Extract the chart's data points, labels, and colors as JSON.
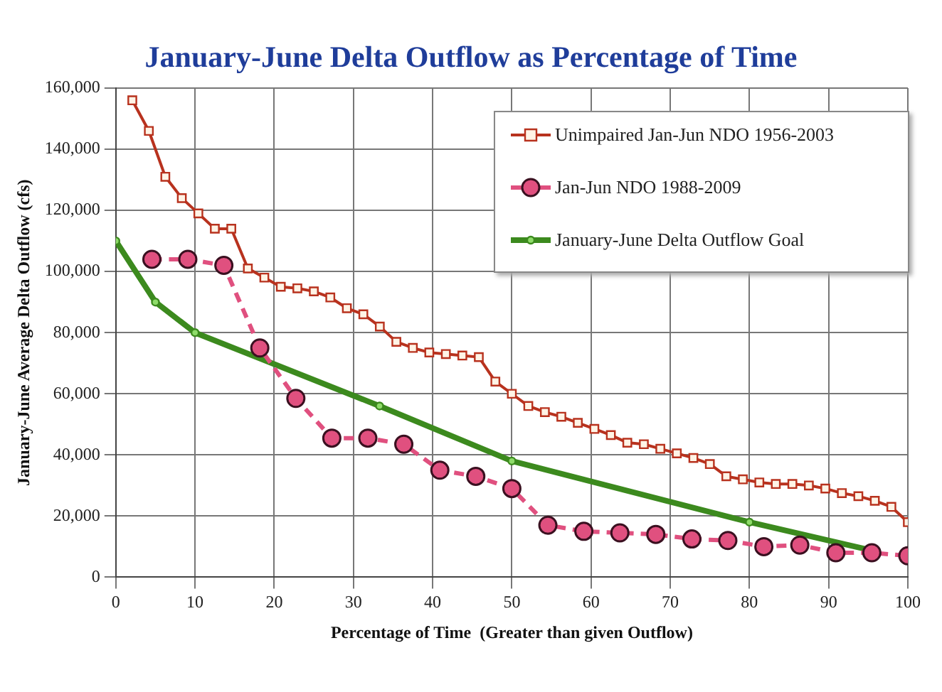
{
  "chart_data": {
    "type": "line",
    "title": "January-June Delta Outflow as Percentage of Time",
    "xlabel": "Percentage of Time  (Greater than given Outflow)",
    "ylabel": "January-June Average Delta Outflow (cfs)",
    "xlim": [
      0,
      100
    ],
    "xticks": [
      0,
      10,
      20,
      30,
      40,
      50,
      60,
      70,
      80,
      90,
      100
    ],
    "ylim": [
      0,
      160000
    ],
    "yticks": [
      {
        "value": 0,
        "label": "0"
      },
      {
        "value": 20000,
        "label": "20,000"
      },
      {
        "value": 40000,
        "label": "40,000"
      },
      {
        "value": 60000,
        "label": "60,000"
      },
      {
        "value": 80000,
        "label": "80,000"
      },
      {
        "value": 100000,
        "label": "100,000"
      },
      {
        "value": 120000,
        "label": "120,000"
      },
      {
        "value": 140000,
        "label": "140,000"
      },
      {
        "value": 160000,
        "label": "160,000"
      }
    ],
    "grid": true,
    "legend": "top right",
    "series": [
      {
        "name": "Unimpaired Jan-Jun NDO 1956-2003",
        "color": "#b8321e",
        "marker": "square",
        "line_style": "solid",
        "x": [
          2.08,
          4.17,
          6.25,
          8.33,
          10.42,
          12.5,
          14.58,
          16.67,
          18.75,
          20.83,
          22.92,
          25,
          27.08,
          29.17,
          31.25,
          33.33,
          35.42,
          37.5,
          39.58,
          41.67,
          43.75,
          45.83,
          47.92,
          50,
          52.08,
          54.17,
          56.25,
          58.33,
          60.42,
          62.5,
          64.58,
          66.67,
          68.75,
          70.83,
          72.92,
          75,
          77.08,
          79.17,
          81.25,
          83.33,
          85.42,
          87.5,
          89.58,
          91.67,
          93.75,
          95.83,
          97.92,
          100
        ],
        "values": [
          156000,
          146000,
          131000,
          124000,
          119000,
          114000,
          114000,
          101000,
          98000,
          95000,
          94500,
          93500,
          91500,
          88000,
          86000,
          82000,
          77000,
          75000,
          73500,
          73000,
          72500,
          72000,
          64000,
          60000,
          56000,
          54000,
          52500,
          50500,
          48500,
          46500,
          44000,
          43500,
          42000,
          40500,
          39000,
          37000,
          33000,
          32000,
          31000,
          30500,
          30500,
          30000,
          29000,
          27500,
          26500,
          25000,
          23000,
          18000
        ]
      },
      {
        "name": "Jan-Jun NDO 1988-2009",
        "color": "#e0507f",
        "marker": "circle",
        "line_style": "dashed",
        "x": [
          4.55,
          9.09,
          13.64,
          18.18,
          22.73,
          27.27,
          31.82,
          36.36,
          40.91,
          45.45,
          50,
          54.55,
          59.09,
          63.64,
          68.18,
          72.73,
          77.27,
          81.82,
          86.36,
          90.91,
          95.45,
          100
        ],
        "values": [
          104000,
          104000,
          102000,
          75000,
          58500,
          45500,
          45500,
          43500,
          35000,
          33000,
          29000,
          17000,
          15000,
          14500,
          14000,
          12500,
          12000,
          10000,
          10500,
          8000,
          8000,
          7000
        ]
      },
      {
        "name": "January-June Delta Outflow Goal",
        "color": "#3c8a1e",
        "marker": "circle",
        "line_style": "solid",
        "x": [
          0,
          5,
          10,
          33.3,
          50,
          80,
          95
        ],
        "values": [
          110000,
          90000,
          80000,
          56000,
          38000,
          18000,
          9000
        ]
      }
    ]
  }
}
